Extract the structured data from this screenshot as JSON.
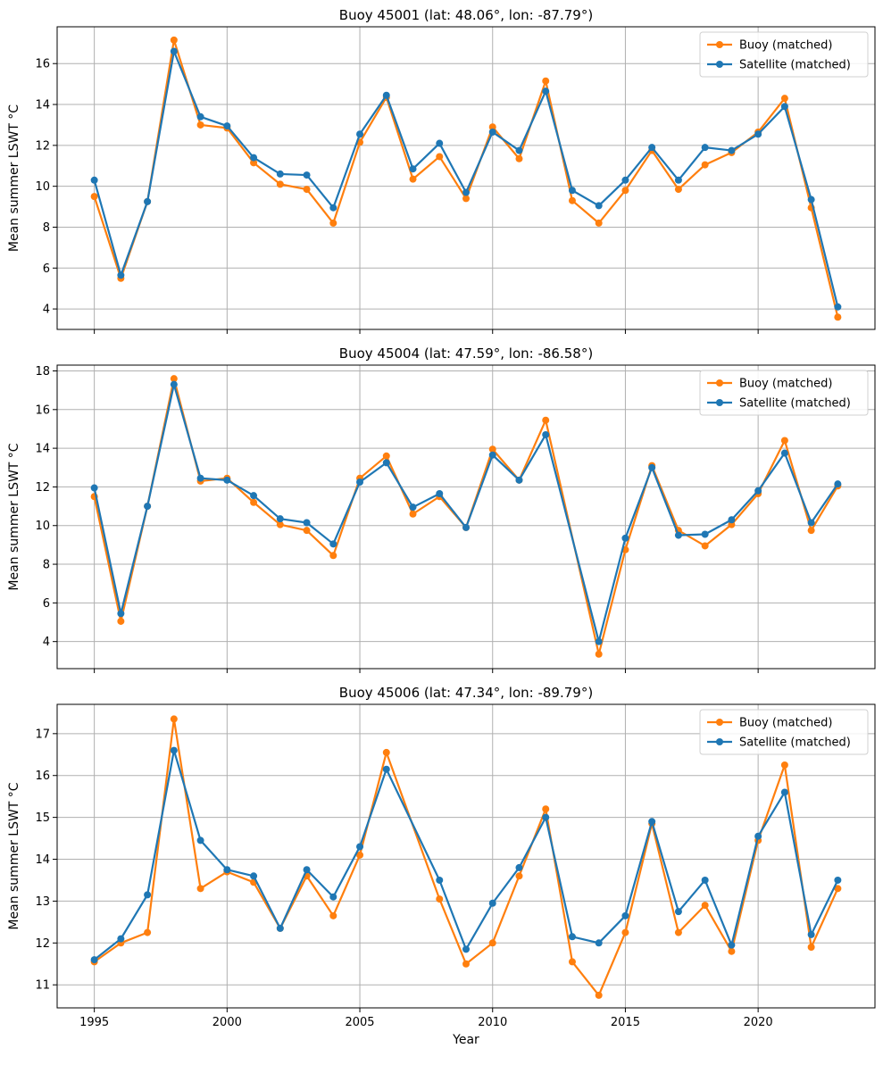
{
  "xlabel": "Year",
  "colors": {
    "buoy": "#ff7f0e",
    "satellite": "#1f77b4",
    "grid": "#b0b0b0"
  },
  "chart_data": [
    {
      "type": "line",
      "title": "Buoy 45001 (lat: 48.06°, lon: -87.79°)",
      "xlabel": "",
      "ylabel": "Mean summer LSWT °C",
      "xlim": [
        1993.6,
        2024.4
      ],
      "ylim": [
        3.0,
        17.8
      ],
      "yticks": [
        4,
        6,
        8,
        10,
        12,
        14,
        16
      ],
      "xticks": [
        1995,
        2000,
        2005,
        2010,
        2015,
        2020
      ],
      "grid": true,
      "legend": "top-right",
      "x": [
        1995,
        1996,
        1997,
        1998,
        1999,
        2000,
        2001,
        2002,
        2003,
        2004,
        2005,
        2006,
        2007,
        2008,
        2009,
        2010,
        2011,
        2012,
        2013,
        2014,
        2015,
        2016,
        2017,
        2018,
        2019,
        2020,
        2021,
        2022,
        2023
      ],
      "series": [
        {
          "name": "Buoy (matched)",
          "values": [
            9.5,
            5.5,
            9.25,
            17.15,
            13.0,
            12.85,
            11.15,
            10.1,
            9.85,
            8.2,
            12.15,
            14.35,
            10.35,
            11.45,
            9.4,
            12.9,
            11.35,
            15.15,
            9.3,
            8.2,
            9.8,
            11.75,
            9.85,
            11.05,
            11.65,
            12.65,
            14.3,
            8.95,
            3.6
          ]
        },
        {
          "name": "Satellite (matched)",
          "values": [
            10.3,
            5.65,
            9.25,
            16.6,
            13.4,
            12.95,
            11.4,
            10.6,
            10.55,
            8.95,
            12.55,
            14.45,
            10.85,
            12.1,
            9.7,
            12.65,
            11.75,
            14.65,
            9.8,
            9.05,
            10.3,
            11.9,
            10.3,
            11.9,
            11.75,
            12.55,
            13.9,
            9.35,
            4.1
          ]
        }
      ]
    },
    {
      "type": "line",
      "title": "Buoy 45004 (lat: 47.59°, lon: -86.58°)",
      "xlabel": "",
      "ylabel": "Mean summer LSWT °C",
      "xlim": [
        1993.6,
        2024.4
      ],
      "ylim": [
        2.6,
        18.3
      ],
      "yticks": [
        4,
        6,
        8,
        10,
        12,
        14,
        16,
        18
      ],
      "xticks": [
        1995,
        2000,
        2005,
        2010,
        2015,
        2020
      ],
      "grid": true,
      "legend": "top-right",
      "x": [
        1995,
        1996,
        1997,
        1998,
        1999,
        2000,
        2001,
        2002,
        2003,
        2004,
        2005,
        2006,
        2007,
        2008,
        2009,
        2010,
        2011,
        2012,
        2014,
        2015,
        2016,
        2017,
        2018,
        2019,
        2020,
        2021,
        2022,
        2023
      ],
      "series": [
        {
          "name": "Buoy (matched)",
          "values": [
            11.5,
            5.05,
            11.0,
            17.6,
            12.3,
            12.45,
            11.2,
            10.05,
            9.75,
            8.45,
            12.45,
            13.6,
            10.6,
            11.5,
            9.9,
            13.95,
            12.35,
            15.45,
            3.35,
            8.75,
            13.1,
            9.75,
            8.95,
            10.05,
            11.65,
            14.4,
            9.75,
            12.05
          ]
        },
        {
          "name": "Satellite (matched)",
          "values": [
            11.95,
            5.45,
            11.0,
            17.3,
            12.45,
            12.35,
            11.55,
            10.35,
            10.15,
            9.05,
            12.25,
            13.25,
            10.95,
            11.65,
            9.9,
            13.65,
            12.35,
            14.7,
            4.0,
            9.35,
            13.0,
            9.5,
            9.55,
            10.3,
            11.8,
            13.75,
            10.15,
            12.15
          ]
        }
      ]
    },
    {
      "type": "line",
      "title": "Buoy 45006 (lat: 47.34°, lon: -89.79°)",
      "xlabel": "Year",
      "ylabel": "Mean summer LSWT °C",
      "xlim": [
        1993.6,
        2024.4
      ],
      "ylim": [
        10.45,
        17.7
      ],
      "yticks": [
        11,
        12,
        13,
        14,
        15,
        16,
        17
      ],
      "xticks": [
        1995,
        2000,
        2005,
        2010,
        2015,
        2020
      ],
      "grid": true,
      "legend": "top-right",
      "x": [
        1995,
        1996,
        1997,
        1998,
        1999,
        2000,
        2001,
        2002,
        2003,
        2004,
        2005,
        2006,
        2008,
        2009,
        2010,
        2011,
        2012,
        2013,
        2014,
        2015,
        2016,
        2017,
        2018,
        2019,
        2020,
        2021,
        2022,
        2023
      ],
      "series": [
        {
          "name": "Buoy (matched)",
          "values": [
            11.55,
            12.0,
            12.25,
            17.35,
            13.3,
            13.7,
            13.45,
            12.35,
            13.6,
            12.65,
            14.1,
            16.55,
            13.05,
            11.5,
            12.0,
            13.6,
            15.2,
            11.55,
            10.75,
            12.25,
            14.85,
            12.25,
            12.9,
            11.8,
            14.45,
            16.25,
            11.9,
            13.3
          ]
        },
        {
          "name": "Satellite (matched)",
          "values": [
            11.6,
            12.1,
            13.15,
            16.6,
            14.45,
            13.75,
            13.6,
            12.35,
            13.75,
            13.1,
            14.3,
            16.15,
            13.5,
            11.85,
            12.95,
            13.8,
            15.0,
            12.15,
            12.0,
            12.65,
            14.9,
            12.75,
            13.5,
            11.95,
            14.55,
            15.6,
            12.2,
            13.5
          ]
        }
      ]
    }
  ]
}
